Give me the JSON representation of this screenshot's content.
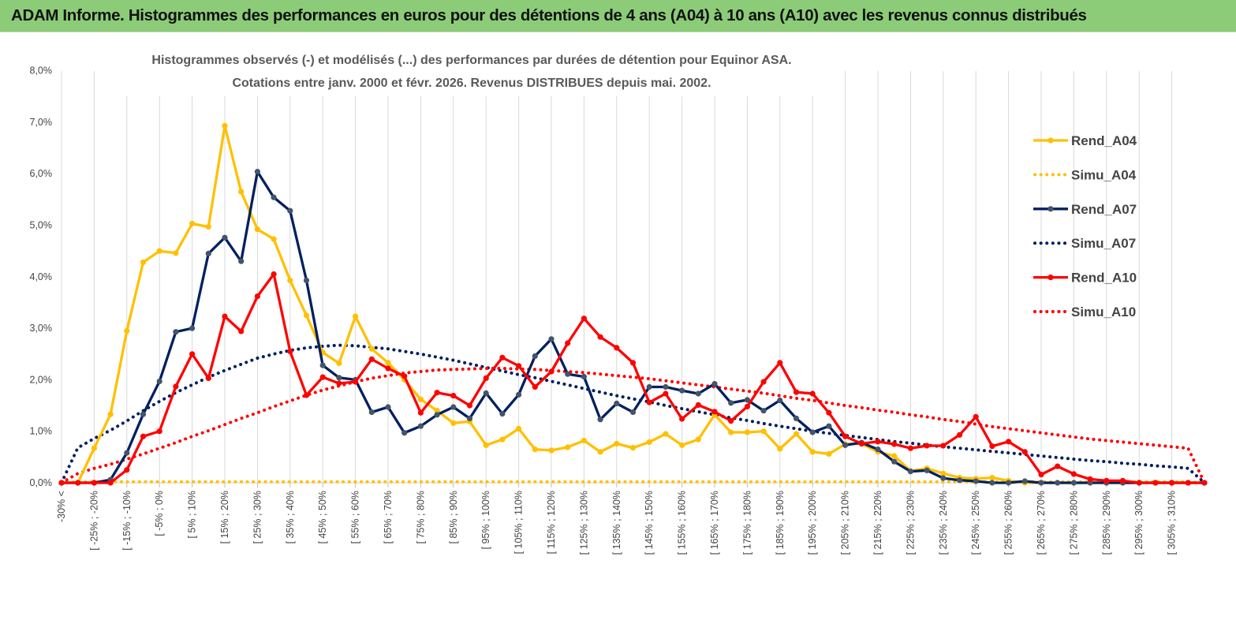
{
  "banner": {
    "title": "ADAM Informe. Histogrammes des performances en euros pour des détentions de 4 ans (A04) à 10 ans (A10) avec les revenus connus distribués"
  },
  "chart_data": {
    "type": "line",
    "title_line1": "Histogrammes observés (-) et modélisés (...) des performances par durées de détention pour Equinor ASA.",
    "title_line2": "Cotations entre janv. 2000 et févr. 2026. Revenus DISTRIBUES depuis mai. 2002.",
    "xlabel": "",
    "ylabel": "",
    "ylim": [
      0,
      8
    ],
    "yticks": [
      "0,0%",
      "1,0%",
      "2,0%",
      "3,0%",
      "4,0%",
      "5,0%",
      "6,0%",
      "7,0%",
      "8,0%"
    ],
    "grid": "vertical",
    "legend_position": "right",
    "x_labels": [
      "-30% <",
      "[ -25% ; -20%",
      "[ -15% ; -10%",
      "[ -5% ; 0%",
      "[ 5% ; 10%",
      "[ 15% ; 20%",
      "[ 25% ; 30%",
      "[ 35% ; 40%",
      "[ 45% ; 50%",
      "[ 55% ; 60%",
      "[ 65% ; 70%",
      "[ 75% ; 80%",
      "[ 85% ; 90%",
      "[ 95% ; 100%",
      "[ 105% ; 110%",
      "[ 115% ; 120%",
      "[ 125% ; 130%",
      "[ 135% ; 140%",
      "[ 145% ; 150%",
      "[ 155% ; 160%",
      "[ 165% ; 170%",
      "[ 175% ; 180%",
      "[ 185% ; 190%",
      "[ 195% ; 200%",
      "[ 205% ; 210%",
      "[ 215% ; 220%",
      "[ 225% ; 230%",
      "[ 235% ; 240%",
      "[ 245% ; 250%",
      "[ 255% ; 260%",
      "[ 265% ; 270%",
      "[ 275% ; 280%",
      "[ 285% ; 290%",
      "[ 295% ; 300%",
      "[ 305% ; 310%"
    ],
    "x_label_indices": [
      0,
      2,
      4,
      6,
      8,
      10,
      12,
      14,
      16,
      18,
      20,
      22,
      24,
      26,
      28,
      30,
      32,
      34,
      36,
      38,
      40,
      42,
      44,
      46,
      48,
      50,
      52,
      54,
      56,
      58,
      60,
      62,
      64,
      66,
      68
    ],
    "n_points": 71,
    "series": [
      {
        "name": "Rend_A04",
        "style": "solid",
        "color": "#ffc000",
        "values": [
          0,
          0,
          0.67,
          1.33,
          2.95,
          4.28,
          4.5,
          4.46,
          5.03,
          4.97,
          6.93,
          5.65,
          4.92,
          4.73,
          3.93,
          3.25,
          2.53,
          2.32,
          3.23,
          2.6,
          2.33,
          2.0,
          1.62,
          1.4,
          1.16,
          1.19,
          0.73,
          0.84,
          1.05,
          0.65,
          0.63,
          0.69,
          0.82,
          0.6,
          0.76,
          0.68,
          0.79,
          0.95,
          0.73,
          0.84,
          1.32,
          0.98,
          0.98,
          1.0,
          0.66,
          0.95,
          0.6,
          0.56,
          0.75,
          0.76,
          0.6,
          0.52,
          0.23,
          0.28,
          0.18,
          0.1,
          0.08,
          0.1,
          0.04,
          0.0,
          0.0,
          0.0,
          0.0,
          0.0,
          0.0,
          0.0,
          0.0,
          0.0,
          0.0,
          0.0,
          0.0
        ]
      },
      {
        "name": "Simu_A04",
        "style": "dotted",
        "color": "#ffc000",
        "values": [
          0.0,
          0.02,
          0.02,
          0.02,
          0.02,
          0.02,
          0.02,
          0.02,
          0.02,
          0.02,
          0.02,
          0.02,
          0.02,
          0.02,
          0.02,
          0.02,
          0.02,
          0.02,
          0.02,
          0.02,
          0.02,
          0.02,
          0.02,
          0.02,
          0.02,
          0.02,
          0.02,
          0.02,
          0.02,
          0.02,
          0.02,
          0.02,
          0.02,
          0.02,
          0.02,
          0.02,
          0.02,
          0.02,
          0.02,
          0.02,
          0.02,
          0.02,
          0.02,
          0.02,
          0.02,
          0.02,
          0.02,
          0.02,
          0.02,
          0.02,
          0.02,
          0.02,
          0.02,
          0.02,
          0.02,
          0.02,
          0.02,
          0.02,
          0.02,
          0.02,
          0.02,
          0.02,
          0.02,
          0.02,
          0.02,
          0.02,
          0.02,
          0.02,
          0.02,
          0.02,
          0.0
        ]
      },
      {
        "name": "Rend_A07",
        "style": "solid",
        "color": "#002060",
        "values": [
          0,
          0,
          0,
          0.06,
          0.58,
          1.33,
          1.97,
          2.93,
          3.0,
          4.45,
          4.76,
          4.3,
          6.04,
          5.54,
          5.28,
          3.93,
          2.28,
          2.04,
          2.0,
          1.37,
          1.47,
          0.97,
          1.1,
          1.32,
          1.47,
          1.25,
          1.74,
          1.34,
          1.71,
          2.46,
          2.79,
          2.11,
          2.06,
          1.23,
          1.54,
          1.37,
          1.86,
          1.86,
          1.79,
          1.73,
          1.92,
          1.55,
          1.61,
          1.4,
          1.6,
          1.25,
          0.98,
          1.1,
          0.73,
          0.78,
          0.65,
          0.41,
          0.22,
          0.24,
          0.09,
          0.05,
          0.03,
          0.0,
          0.0,
          0.03,
          0.0,
          0.0,
          0.0,
          0.0,
          0.0,
          0.0,
          0.0,
          0.0,
          0.0,
          0.0,
          0.0
        ]
      },
      {
        "name": "Simu_A07",
        "style": "dotted",
        "color": "#002060",
        "values": [
          0.0,
          0.68,
          0.86,
          1.02,
          1.2,
          1.4,
          1.58,
          1.75,
          1.9,
          2.05,
          2.18,
          2.3,
          2.42,
          2.5,
          2.57,
          2.62,
          2.65,
          2.67,
          2.66,
          2.63,
          2.6,
          2.55,
          2.5,
          2.44,
          2.38,
          2.31,
          2.24,
          2.17,
          2.1,
          2.04,
          1.97,
          1.9,
          1.83,
          1.76,
          1.69,
          1.63,
          1.57,
          1.5,
          1.44,
          1.38,
          1.32,
          1.26,
          1.21,
          1.15,
          1.1,
          1.05,
          1.0,
          0.96,
          0.92,
          0.88,
          0.84,
          0.8,
          0.77,
          0.73,
          0.7,
          0.67,
          0.64,
          0.61,
          0.58,
          0.55,
          0.52,
          0.49,
          0.46,
          0.43,
          0.41,
          0.38,
          0.36,
          0.33,
          0.31,
          0.28,
          0.0
        ]
      },
      {
        "name": "Rend_A10",
        "style": "solid",
        "color": "#ff0000",
        "values": [
          0,
          0,
          0,
          0,
          0.25,
          0.9,
          1.0,
          1.87,
          2.5,
          2.03,
          3.23,
          2.94,
          3.62,
          4.05,
          2.55,
          1.7,
          2.05,
          1.93,
          1.96,
          2.4,
          2.22,
          2.07,
          1.36,
          1.75,
          1.69,
          1.5,
          2.03,
          2.43,
          2.27,
          1.86,
          2.16,
          2.71,
          3.19,
          2.83,
          2.62,
          2.33,
          1.56,
          1.73,
          1.24,
          1.51,
          1.38,
          1.2,
          1.48,
          1.96,
          2.33,
          1.76,
          1.73,
          1.36,
          0.9,
          0.76,
          0.8,
          0.75,
          0.67,
          0.72,
          0.72,
          0.93,
          1.28,
          0.71,
          0.8,
          0.6,
          0.16,
          0.32,
          0.17,
          0.07,
          0.04,
          0.04,
          0.0,
          0.0,
          0.0,
          0.0,
          0.0
        ]
      },
      {
        "name": "Simu_A10",
        "style": "dotted",
        "color": "#ff0000",
        "values": [
          0.0,
          0.18,
          0.28,
          0.36,
          0.46,
          0.56,
          0.67,
          0.78,
          0.9,
          1.01,
          1.13,
          1.25,
          1.36,
          1.48,
          1.59,
          1.7,
          1.8,
          1.88,
          1.96,
          2.03,
          2.08,
          2.13,
          2.16,
          2.19,
          2.2,
          2.21,
          2.22,
          2.22,
          2.21,
          2.2,
          2.18,
          2.16,
          2.14,
          2.11,
          2.08,
          2.05,
          2.02,
          1.98,
          1.94,
          1.9,
          1.86,
          1.82,
          1.78,
          1.74,
          1.69,
          1.64,
          1.6,
          1.55,
          1.5,
          1.46,
          1.41,
          1.37,
          1.32,
          1.28,
          1.23,
          1.19,
          1.14,
          1.09,
          1.05,
          1.01,
          0.97,
          0.93,
          0.89,
          0.85,
          0.82,
          0.79,
          0.76,
          0.73,
          0.7,
          0.67,
          0.0
        ]
      }
    ]
  }
}
